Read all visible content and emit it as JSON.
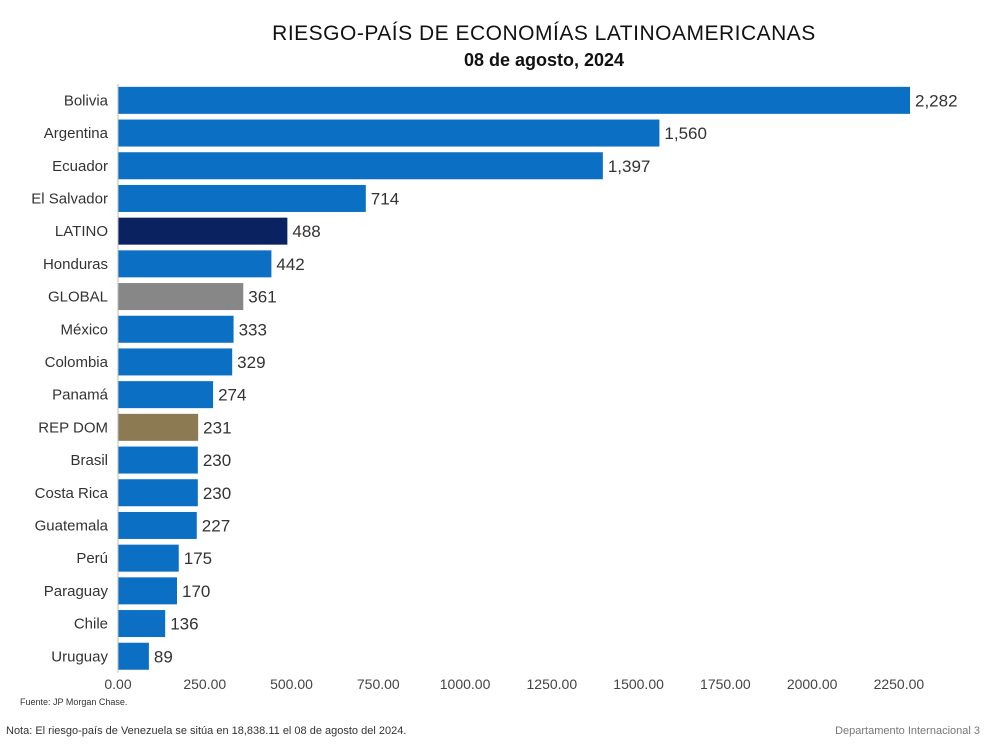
{
  "chart_data": {
    "type": "bar",
    "orientation": "horizontal",
    "title": "RIESGO-PAÍS DE ECONOMÍAS LATINOAMERICANAS",
    "subtitle": "08 de agosto, 2024",
    "categories": [
      "Bolivia",
      "Argentina",
      "Ecuador",
      "El Salvador",
      "LATINO",
      "Honduras",
      "GLOBAL",
      "México",
      "Colombia",
      "Panamá",
      "REP DOM",
      "Brasil",
      "Costa Rica",
      "Guatemala",
      "Perú",
      "Paraguay",
      "Chile",
      "Uruguay"
    ],
    "values": [
      2282,
      1560,
      1397,
      714,
      488,
      442,
      361,
      333,
      329,
      274,
      231,
      230,
      230,
      227,
      175,
      170,
      136,
      89
    ],
    "value_labels": [
      "2,282",
      "1,560",
      "1,397",
      "714",
      "488",
      "442",
      "361",
      "333",
      "329",
      "274",
      "231",
      "230",
      "230",
      "227",
      "175",
      "170",
      "136",
      "89"
    ],
    "colors": [
      "#0b6fc4",
      "#0b6fc4",
      "#0b6fc4",
      "#0b6fc4",
      "#0a2260",
      "#0b6fc4",
      "#878787",
      "#0b6fc4",
      "#0b6fc4",
      "#0b6fc4",
      "#8c7a52",
      "#0b6fc4",
      "#0b6fc4",
      "#0b6fc4",
      "#0b6fc4",
      "#0b6fc4",
      "#0b6fc4",
      "#0b6fc4"
    ],
    "x_ticks": [
      0,
      250,
      500,
      750,
      1000,
      1250,
      1500,
      1750,
      2000,
      2250
    ],
    "x_tick_labels": [
      "0.00",
      "250.00",
      "500.00",
      "750.00",
      "1000.00",
      "1250.00",
      "1500.00",
      "1750.00",
      "2000.00",
      "2250.00"
    ],
    "xlim": [
      0,
      2300
    ],
    "grid": false,
    "legend": "none"
  },
  "footer": {
    "source": "Fuente: JP Morgan Chase.",
    "note": "Nota: El riesgo-país de Venezuela se sitúa en 18,838.11 el 08 de agosto del 2024.",
    "department": "Departamento Internacional   3"
  }
}
